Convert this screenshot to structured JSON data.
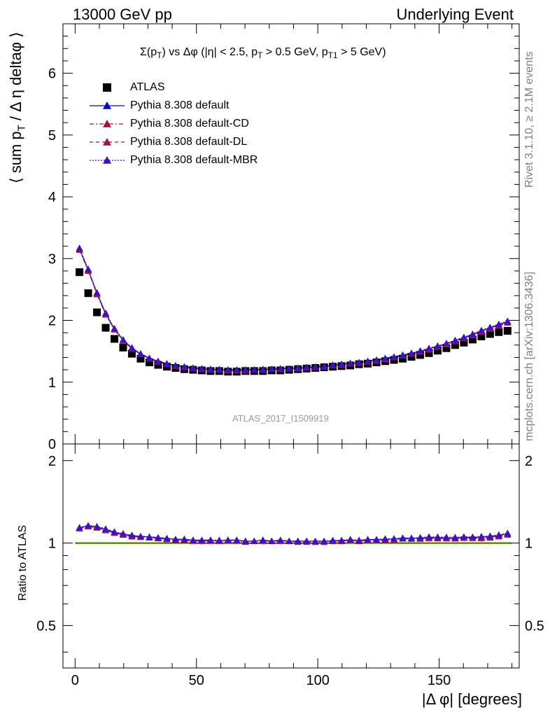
{
  "header": {
    "left": "13000 GeV pp",
    "right": "Underlying Event"
  },
  "side": {
    "rivet": "Rivet 3.1.10, ≥ 2.1M events",
    "mcplots": "mcplots.cern.ch [arXiv:1306.3436]"
  },
  "watermark": "ATLAS_2017_I1509919",
  "chart_data": {
    "type": "scatter",
    "title": "Σ(p_T) vs Δφ (|η| < 2.5, p_T > 0.5 GeV, p_T1 > 5 GeV)",
    "title_parts": {
      "a": "Σ(p",
      "b": "T",
      "c": ") vs Δφ (|η| < 2.5, p",
      "d": "T",
      "e": " > 0.5 GeV, p",
      "f": "T1",
      "g": " > 5 GeV)"
    },
    "xlabel": "|Δ φ| [degrees]",
    "ylabel_main": "⟨ sum p_T / Δ η deltaφ ⟩",
    "ylabel_main_parts": {
      "a": "⟨ sum p",
      "b": "T",
      "c": " / Δ η deltaφ ⟩"
    },
    "ylabel_ratio": "Ratio to ATLAS",
    "xlim": [
      -5,
      183
    ],
    "ylim_main": [
      0,
      6.8
    ],
    "ylim_ratio": [
      0.35,
      2.3
    ],
    "ratio_log": true,
    "xticks": [
      0,
      50,
      100,
      150
    ],
    "yticks_main": [
      0,
      1,
      2,
      3,
      4,
      5,
      6
    ],
    "yticks_ratio": [
      0.5,
      1,
      2
    ],
    "colors": {
      "ATLAS": "#000000",
      "default": "#0000cc",
      "default-CD": "#a0104a",
      "default-DL": "#a0104a",
      "default-MBR": "#3b0fcc",
      "band": "#f0f59a",
      "band_line": "#33cc33"
    },
    "legend": [
      {
        "name": "ATLAS",
        "marker": "square",
        "line": "none",
        "color": "#000000"
      },
      {
        "name": "Pythia 8.308 default",
        "marker": "triangle",
        "line": "solid",
        "color": "#0000cc"
      },
      {
        "name": "Pythia 8.308 default-CD",
        "marker": "triangle",
        "line": "dashdot",
        "color": "#a0104a"
      },
      {
        "name": "Pythia 8.308 default-DL",
        "marker": "triangle",
        "line": "dashed",
        "color": "#a0104a"
      },
      {
        "name": "Pythia 8.308 default-MBR",
        "marker": "triangle",
        "line": "dotted",
        "color": "#3b0fcc"
      }
    ],
    "x": [
      1.8,
      5.4,
      9.0,
      12.6,
      16.2,
      19.8,
      23.4,
      27.0,
      30.6,
      34.2,
      37.8,
      41.4,
      45.0,
      48.6,
      52.2,
      55.8,
      59.4,
      63.0,
      66.6,
      70.2,
      73.8,
      77.4,
      81.0,
      84.6,
      88.2,
      91.8,
      95.4,
      99.0,
      102.6,
      106.2,
      109.8,
      113.4,
      117.0,
      120.6,
      124.2,
      127.8,
      131.4,
      135.0,
      138.6,
      142.2,
      145.8,
      149.4,
      153.0,
      156.6,
      160.2,
      163.8,
      167.4,
      171.0,
      174.6,
      178.2
    ],
    "series": [
      {
        "name": "ATLAS",
        "values": [
          2.78,
          2.44,
          2.13,
          1.88,
          1.7,
          1.56,
          1.46,
          1.38,
          1.32,
          1.28,
          1.25,
          1.23,
          1.21,
          1.2,
          1.19,
          1.18,
          1.18,
          1.17,
          1.17,
          1.18,
          1.18,
          1.18,
          1.19,
          1.19,
          1.2,
          1.21,
          1.22,
          1.23,
          1.24,
          1.25,
          1.26,
          1.27,
          1.29,
          1.3,
          1.32,
          1.34,
          1.36,
          1.38,
          1.41,
          1.44,
          1.47,
          1.51,
          1.55,
          1.6,
          1.64,
          1.69,
          1.74,
          1.78,
          1.81,
          1.83
        ]
      },
      {
        "name": "Pythia 8.308 default",
        "values": [
          3.16,
          2.82,
          2.44,
          2.11,
          1.86,
          1.68,
          1.55,
          1.46,
          1.39,
          1.34,
          1.3,
          1.27,
          1.25,
          1.23,
          1.22,
          1.21,
          1.2,
          1.2,
          1.2,
          1.2,
          1.2,
          1.21,
          1.21,
          1.22,
          1.22,
          1.23,
          1.24,
          1.25,
          1.26,
          1.27,
          1.29,
          1.3,
          1.32,
          1.34,
          1.36,
          1.38,
          1.41,
          1.44,
          1.47,
          1.5,
          1.54,
          1.58,
          1.62,
          1.67,
          1.72,
          1.77,
          1.83,
          1.88,
          1.93,
          1.98
        ]
      },
      {
        "name": "Pythia 8.308 default-CD",
        "values": [
          3.14,
          2.8,
          2.42,
          2.09,
          1.85,
          1.67,
          1.54,
          1.45,
          1.38,
          1.33,
          1.29,
          1.26,
          1.24,
          1.22,
          1.21,
          1.2,
          1.2,
          1.19,
          1.19,
          1.19,
          1.2,
          1.2,
          1.21,
          1.21,
          1.22,
          1.22,
          1.23,
          1.24,
          1.25,
          1.27,
          1.28,
          1.3,
          1.31,
          1.33,
          1.35,
          1.37,
          1.4,
          1.43,
          1.46,
          1.49,
          1.53,
          1.57,
          1.61,
          1.66,
          1.71,
          1.76,
          1.81,
          1.86,
          1.91,
          1.96
        ]
      },
      {
        "name": "Pythia 8.308 default-DL",
        "values": [
          3.15,
          2.81,
          2.43,
          2.1,
          1.85,
          1.67,
          1.54,
          1.45,
          1.38,
          1.33,
          1.29,
          1.27,
          1.24,
          1.23,
          1.21,
          1.21,
          1.2,
          1.2,
          1.19,
          1.2,
          1.2,
          1.2,
          1.21,
          1.21,
          1.22,
          1.23,
          1.24,
          1.25,
          1.26,
          1.27,
          1.28,
          1.3,
          1.32,
          1.33,
          1.35,
          1.38,
          1.4,
          1.43,
          1.46,
          1.5,
          1.53,
          1.57,
          1.62,
          1.66,
          1.71,
          1.76,
          1.82,
          1.87,
          1.92,
          1.97
        ]
      },
      {
        "name": "Pythia 8.308 default-MBR",
        "values": [
          3.17,
          2.83,
          2.45,
          2.12,
          1.87,
          1.69,
          1.56,
          1.46,
          1.39,
          1.34,
          1.3,
          1.27,
          1.25,
          1.23,
          1.22,
          1.21,
          1.21,
          1.2,
          1.2,
          1.2,
          1.2,
          1.21,
          1.21,
          1.22,
          1.22,
          1.23,
          1.24,
          1.25,
          1.26,
          1.28,
          1.29,
          1.31,
          1.32,
          1.34,
          1.36,
          1.39,
          1.41,
          1.44,
          1.47,
          1.51,
          1.55,
          1.59,
          1.63,
          1.68,
          1.73,
          1.78,
          1.84,
          1.89,
          1.94,
          1.99
        ]
      }
    ]
  }
}
